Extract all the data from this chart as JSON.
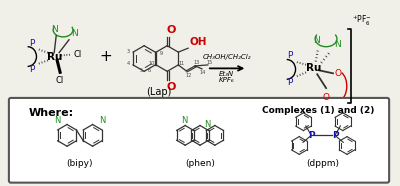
{
  "bg_color": "#f0f0e8",
  "box_bg": "#ffffff",
  "N_color": "#228B22",
  "P_color": "#1414aa",
  "O_color": "#cc0000",
  "Cl_color": "#000000",
  "bond_color": "#333333",
  "reaction_text_line1": "CH₃OH/CH₂Cl₂",
  "reaction_text_line2": "Et₃N",
  "reaction_text_line3": "KPF₆",
  "lap_label": "(Lap)",
  "complexes_label": "Complexes (1) and (2)",
  "where_label": "Where:",
  "bipy_label": "(bipy)",
  "phen_label": "(phen)",
  "dppm_label": "(dppm)",
  "pf6_label": "+ PF₆⁻"
}
